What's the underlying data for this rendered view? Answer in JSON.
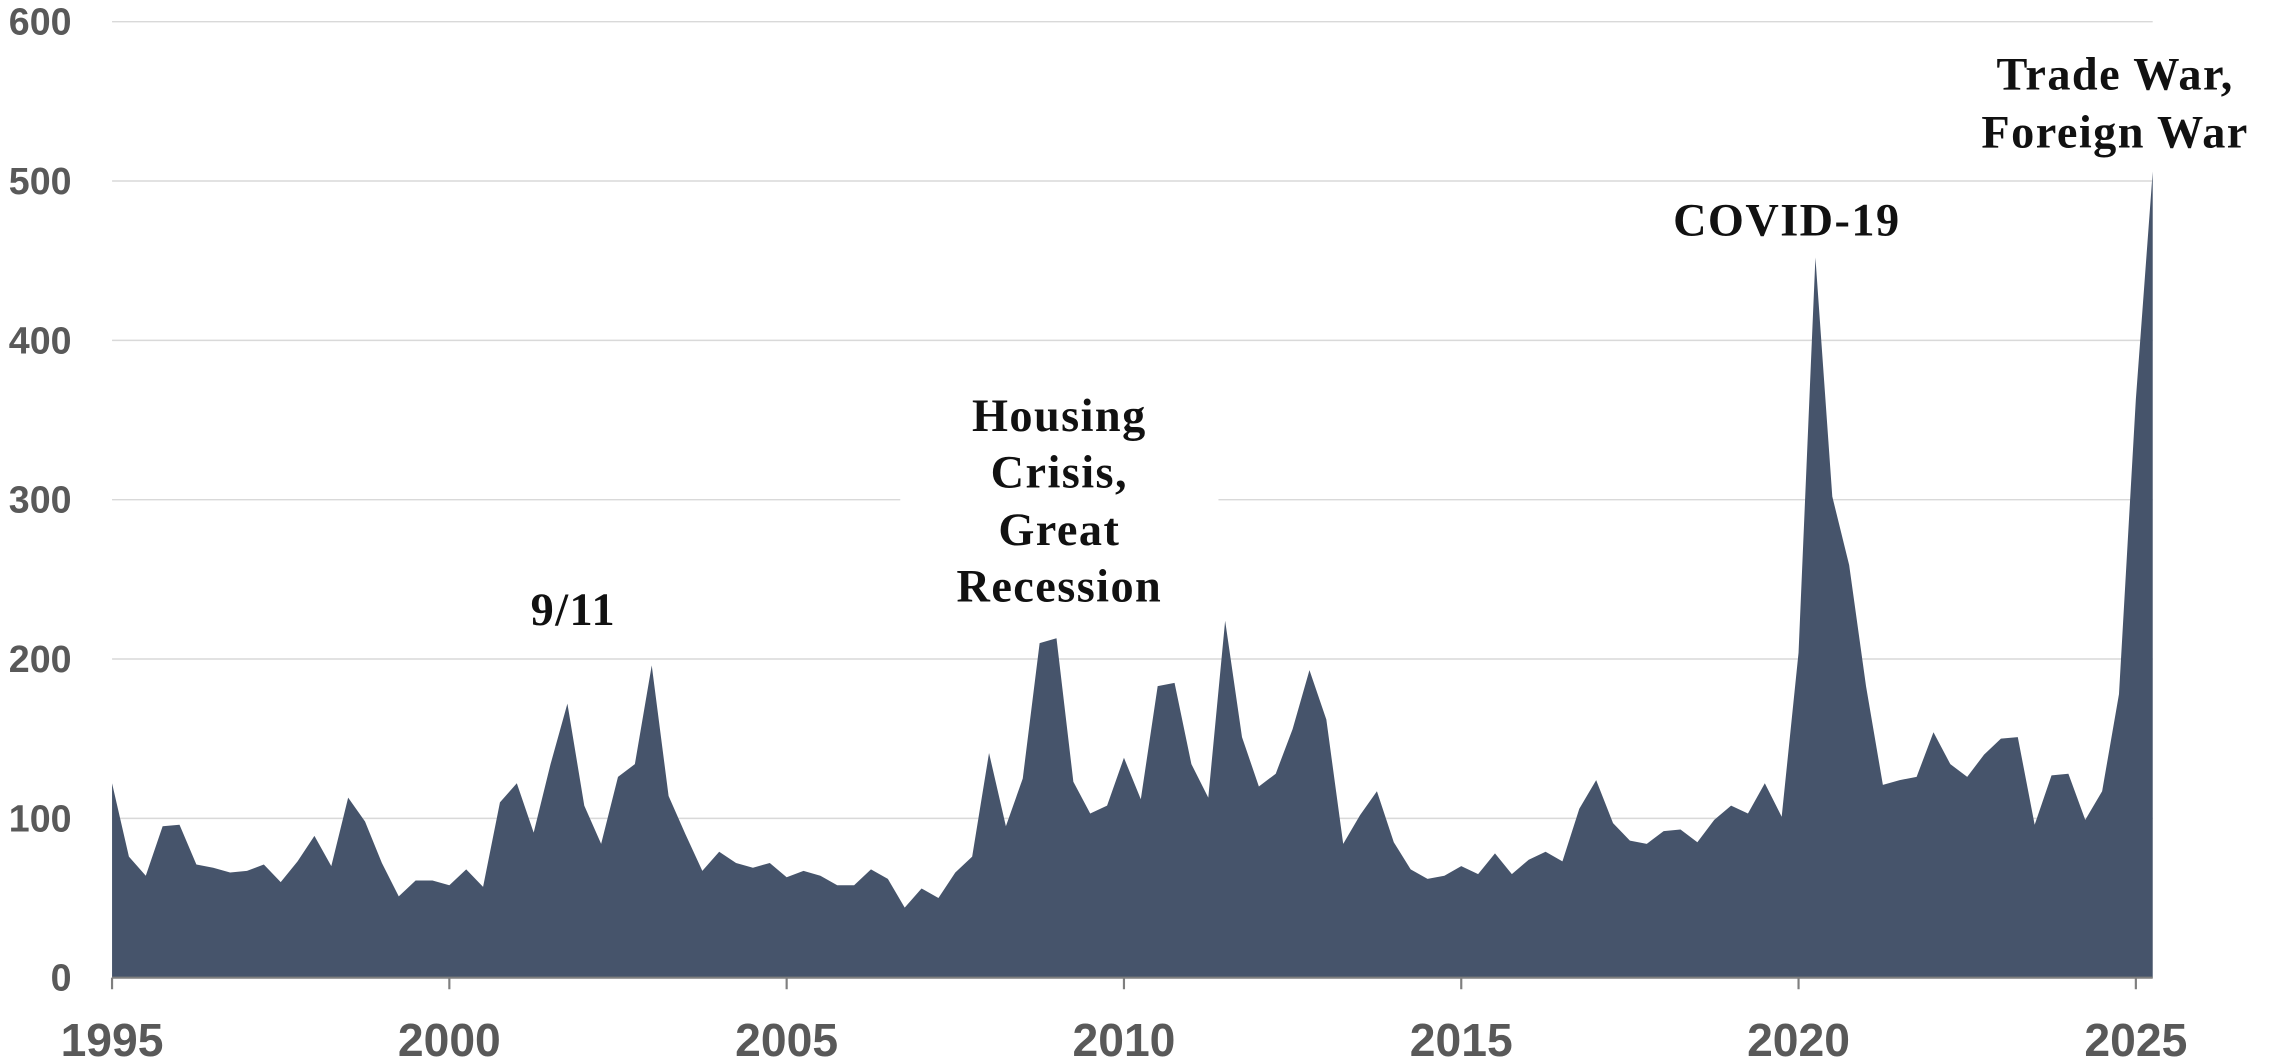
{
  "chart_data": {
    "type": "area",
    "color": "#46546b",
    "x": [
      1995,
      1995.25,
      1995.5,
      1995.75,
      1996,
      1996.25,
      1996.5,
      1996.75,
      1997,
      1997.25,
      1997.5,
      1997.75,
      1998,
      1998.25,
      1998.5,
      1998.75,
      1999,
      1999.25,
      1999.5,
      1999.75,
      2000,
      2000.25,
      2000.5,
      2000.75,
      2001,
      2001.25,
      2001.5,
      2001.75,
      2002,
      2002.25,
      2002.5,
      2002.75,
      2003,
      2003.25,
      2003.5,
      2003.75,
      2004,
      2004.25,
      2004.5,
      2004.75,
      2005,
      2005.25,
      2005.5,
      2005.75,
      2006,
      2006.25,
      2006.5,
      2006.75,
      2007,
      2007.25,
      2007.5,
      2007.75,
      2008,
      2008.25,
      2008.5,
      2008.75,
      2009,
      2009.25,
      2009.5,
      2009.75,
      2010,
      2010.25,
      2010.5,
      2010.75,
      2011,
      2011.25,
      2011.5,
      2011.75,
      2012,
      2012.25,
      2012.5,
      2012.75,
      2013,
      2013.25,
      2013.5,
      2013.75,
      2014,
      2014.25,
      2014.5,
      2014.75,
      2015,
      2015.25,
      2015.5,
      2015.75,
      2016,
      2016.25,
      2016.5,
      2016.75,
      2017,
      2017.25,
      2017.5,
      2017.75,
      2018,
      2018.25,
      2018.5,
      2018.75,
      2019,
      2019.25,
      2019.5,
      2019.75,
      2020,
      2020.25,
      2020.5,
      2020.75,
      2021,
      2021.25,
      2021.5,
      2021.75,
      2022,
      2022.25,
      2022.5,
      2022.75,
      2023,
      2023.25,
      2023.5,
      2023.75,
      2024,
      2024.25,
      2024.5,
      2024.75,
      2025,
      2025.25
    ],
    "values": [
      122,
      76,
      64,
      95,
      96,
      71,
      69,
      66,
      67,
      71,
      60,
      73,
      89,
      70,
      113,
      98,
      72,
      51,
      61,
      61,
      58,
      68,
      57,
      110,
      122,
      91,
      134,
      172,
      108,
      84,
      126,
      134,
      196,
      114,
      90,
      67,
      79,
      72,
      69,
      72,
      63,
      67,
      64,
      58,
      58,
      68,
      62,
      44,
      56,
      50,
      66,
      76,
      141,
      95,
      125,
      210,
      213,
      123,
      103,
      108,
      138,
      112,
      183,
      185,
      134,
      113,
      224,
      151,
      120,
      128,
      156,
      193,
      162,
      84,
      102,
      117,
      85,
      68,
      62,
      64,
      70,
      65,
      78,
      65,
      74,
      79,
      73,
      106,
      124,
      97,
      86,
      84,
      92,
      93,
      85,
      99,
      108,
      103,
      122,
      101,
      204,
      452,
      302,
      259,
      183,
      121,
      124,
      126,
      154,
      134,
      126,
      140,
      150,
      151,
      96,
      127,
      128,
      99,
      117,
      178,
      363,
      506
    ],
    "xlim": [
      1995,
      2025.25
    ],
    "xticks": [
      1995,
      2000,
      2005,
      2010,
      2015,
      2020,
      2025
    ],
    "ylim": [
      0,
      600
    ],
    "yticks": [
      0,
      100,
      200,
      300,
      400,
      500,
      600
    ],
    "grid": true,
    "annotations": [
      [
        "9/11"
      ],
      [
        "Housing",
        "Crisis,",
        "Great",
        "Recession"
      ],
      [
        "COVID-19"
      ],
      [
        "Trade War,",
        "Foreign War"
      ]
    ]
  }
}
